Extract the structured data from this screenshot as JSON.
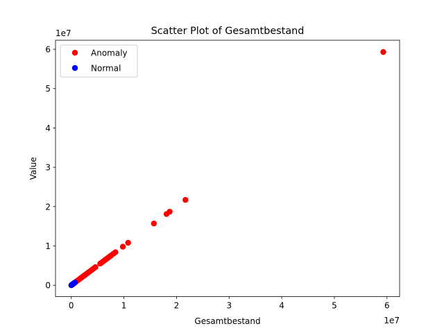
{
  "chart_data": {
    "type": "scatter",
    "title": "Scatter Plot of Gesamtbestand",
    "xlabel": "Gesamtbestand",
    "ylabel": "Value",
    "x_offset_label": "1e7",
    "y_offset_label": "1e7",
    "xlim": [
      -3000000,
      62400000
    ],
    "ylim": [
      -2900000,
      62300000
    ],
    "x_ticks": [
      0,
      10000000,
      20000000,
      30000000,
      40000000,
      50000000,
      60000000
    ],
    "x_tick_labels": [
      "0",
      "1",
      "2",
      "3",
      "4",
      "5",
      "6"
    ],
    "y_ticks": [
      0,
      10000000,
      20000000,
      30000000,
      40000000,
      50000000,
      60000000
    ],
    "y_tick_labels": [
      "0",
      "1",
      "2",
      "3",
      "4",
      "5",
      "6"
    ],
    "legend_position": "top-left",
    "grid": false,
    "series": [
      {
        "name": "Anomaly",
        "color": "#ff0000",
        "points": [
          [
            1000000,
            1000000
          ],
          [
            1300000,
            1300000
          ],
          [
            1600000,
            1600000
          ],
          [
            1900000,
            1900000
          ],
          [
            2200000,
            2200000
          ],
          [
            2500000,
            2500000
          ],
          [
            2800000,
            2800000
          ],
          [
            3100000,
            3100000
          ],
          [
            3400000,
            3400000
          ],
          [
            3700000,
            3700000
          ],
          [
            4000000,
            4000000
          ],
          [
            4300000,
            4300000
          ],
          [
            4600000,
            4600000
          ],
          [
            5500000,
            5500000
          ],
          [
            5800000,
            5800000
          ],
          [
            6100000,
            6100000
          ],
          [
            6400000,
            6400000
          ],
          [
            6700000,
            6700000
          ],
          [
            7000000,
            7000000
          ],
          [
            7300000,
            7300000
          ],
          [
            7600000,
            7600000
          ],
          [
            8000000,
            8000000
          ],
          [
            8400000,
            8400000
          ],
          [
            9800000,
            9800000
          ],
          [
            10800000,
            10800000
          ],
          [
            15700000,
            15700000
          ],
          [
            18100000,
            18100000
          ],
          [
            18700000,
            18700000
          ],
          [
            21700000,
            21700000
          ],
          [
            59300000,
            59300000
          ]
        ]
      },
      {
        "name": "Normal",
        "color": "#0000ff",
        "points": [
          [
            0,
            0
          ],
          [
            50000,
            50000
          ],
          [
            100000,
            100000
          ],
          [
            150000,
            150000
          ],
          [
            200000,
            200000
          ],
          [
            250000,
            250000
          ],
          [
            300000,
            300000
          ],
          [
            350000,
            350000
          ],
          [
            400000,
            400000
          ],
          [
            450000,
            450000
          ],
          [
            500000,
            500000
          ],
          [
            600000,
            600000
          ],
          [
            700000,
            700000
          ]
        ]
      }
    ]
  }
}
